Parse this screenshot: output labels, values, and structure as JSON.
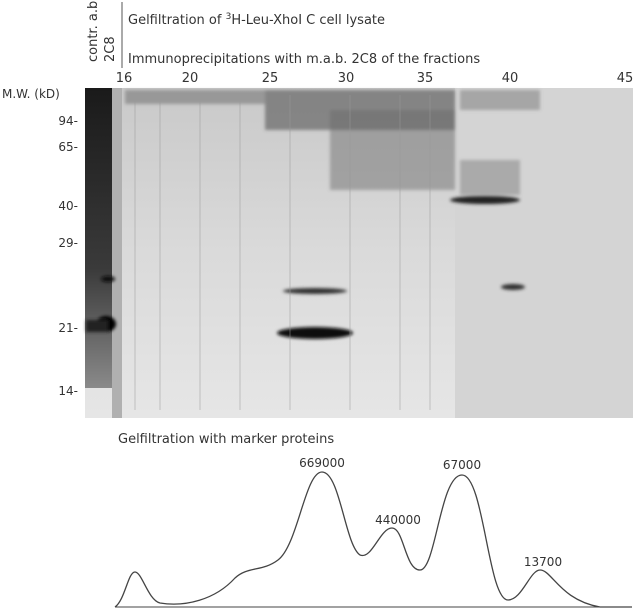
{
  "header": {
    "lanes": [
      "contr. a.b",
      "2C8"
    ],
    "title": {
      "prefix": "Gelfiltration of ",
      "superscript": "3",
      "rest": "H-Leu-XhoI C  cell lysate"
    },
    "subtitle": "Immunoprecipitations with m.a.b. 2C8 of the fractions"
  },
  "fractions": [
    "16",
    "20",
    "25",
    "30",
    "35",
    "40",
    "45"
  ],
  "mw": {
    "label": "M.W. (kD)",
    "markers": [
      "94-",
      "65-",
      "40-",
      "29-",
      "21-",
      "14-"
    ]
  },
  "profile": {
    "title": "Gelfiltration with marker proteins",
    "peaks": [
      "669000",
      "440000",
      "67000",
      "13700"
    ]
  }
}
